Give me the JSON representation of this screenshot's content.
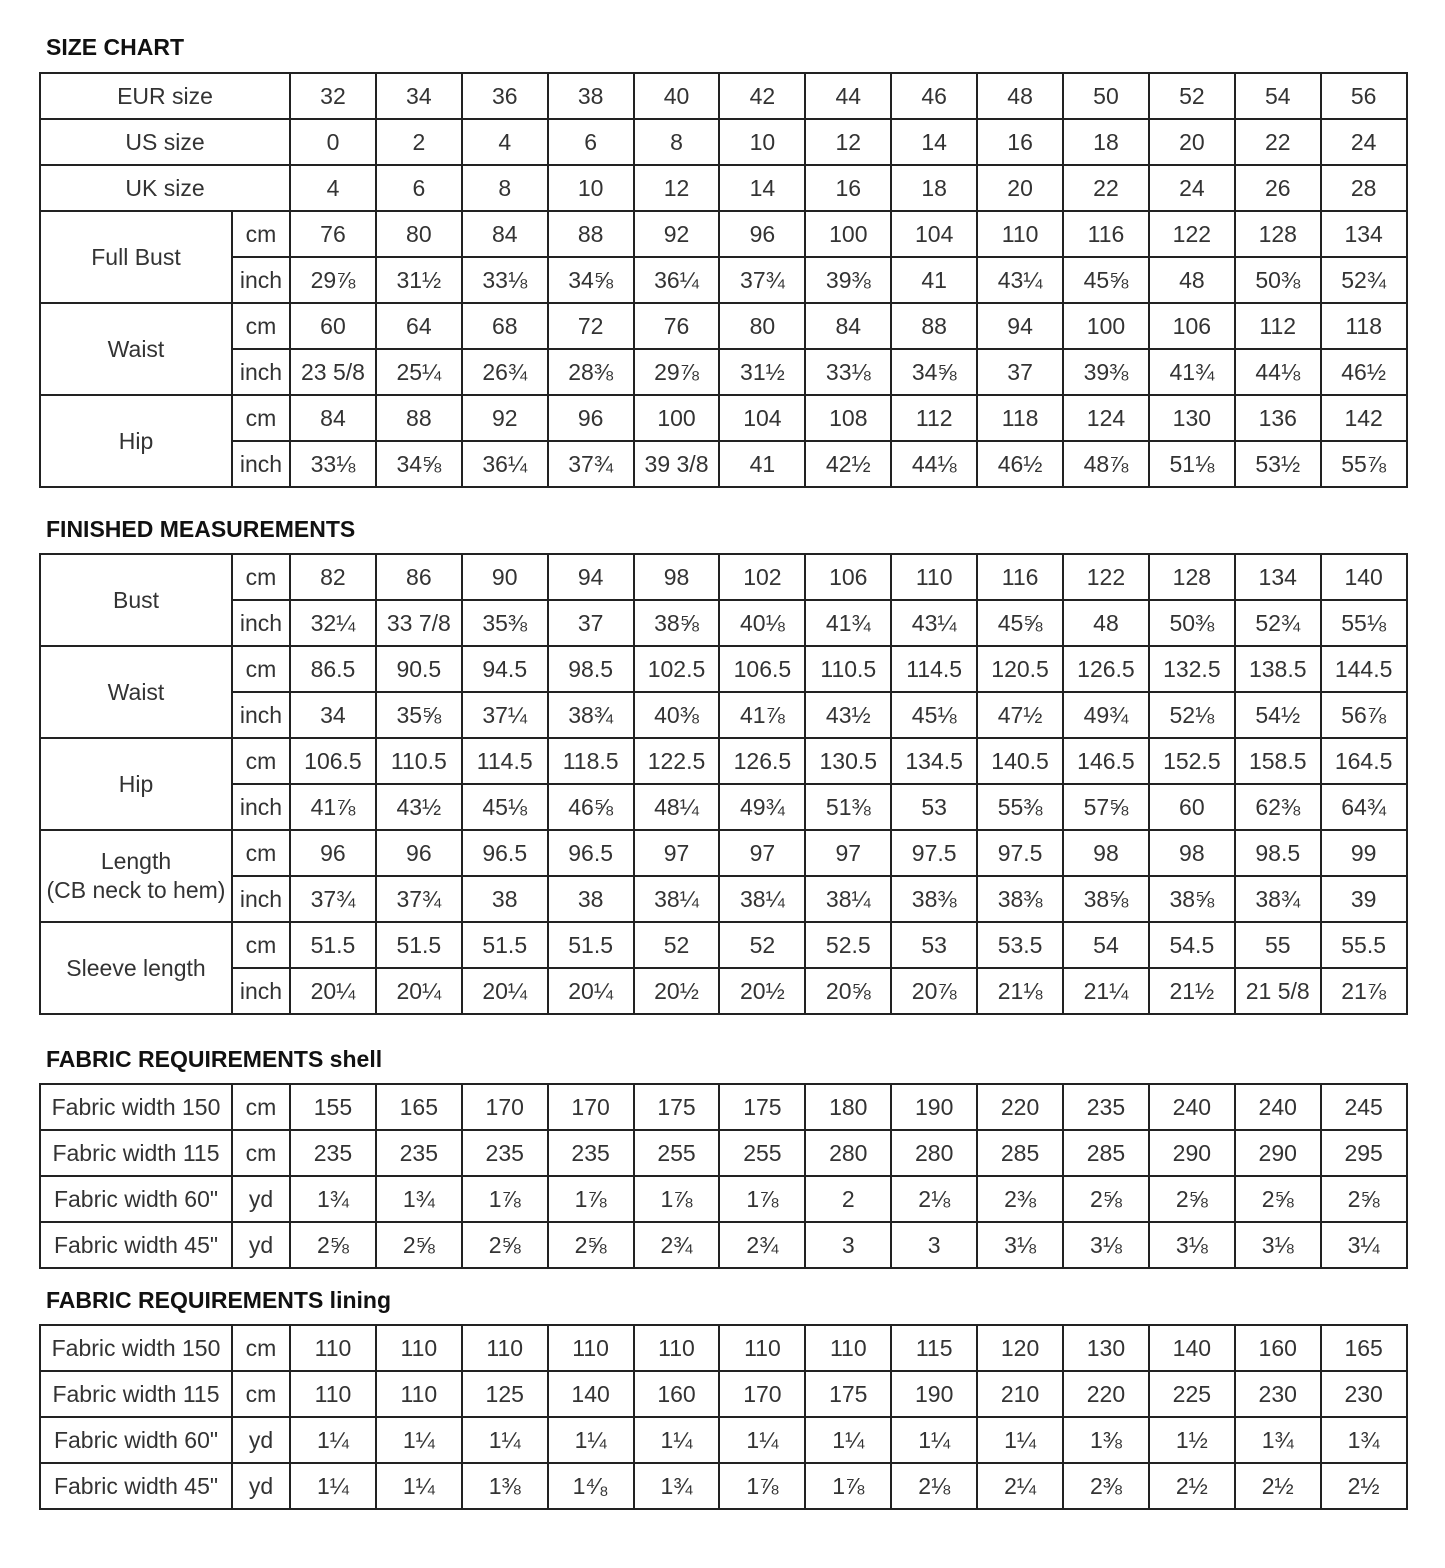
{
  "sections": [
    {
      "title": "SIZE CHART",
      "groups": [
        {
          "label": "EUR size",
          "rows": [
            {
              "unit": "",
              "values": [
                "32",
                "34",
                "36",
                "38",
                "40",
                "42",
                "44",
                "46",
                "48",
                "50",
                "52",
                "54",
                "56"
              ]
            }
          ]
        },
        {
          "label": "US size",
          "rows": [
            {
              "unit": "",
              "values": [
                "0",
                "2",
                "4",
                "6",
                "8",
                "10",
                "12",
                "14",
                "16",
                "18",
                "20",
                "22",
                "24"
              ]
            }
          ]
        },
        {
          "label": "UK size",
          "rows": [
            {
              "unit": "",
              "values": [
                "4",
                "6",
                "8",
                "10",
                "12",
                "14",
                "16",
                "18",
                "20",
                "22",
                "24",
                "26",
                "28"
              ]
            }
          ]
        },
        {
          "label": "Full Bust",
          "rows": [
            {
              "unit": "cm",
              "values": [
                "76",
                "80",
                "84",
                "88",
                "92",
                "96",
                "100",
                "104",
                "110",
                "116",
                "122",
                "128",
                "134"
              ]
            },
            {
              "unit": "inch",
              "values": [
                "29⅞",
                "31½",
                "33⅛",
                "34⅝",
                "36¼",
                "37¾",
                "39⅜",
                "41",
                "43¼",
                "45⅝",
                "48",
                "50⅜",
                "52¾"
              ]
            }
          ]
        },
        {
          "label": "Waist",
          "rows": [
            {
              "unit": "cm",
              "values": [
                "60",
                "64",
                "68",
                "72",
                "76",
                "80",
                "84",
                "88",
                "94",
                "100",
                "106",
                "112",
                "118"
              ]
            },
            {
              "unit": "inch",
              "values": [
                "23 5/8",
                "25¼",
                "26¾",
                "28⅜",
                "29⅞",
                "31½",
                "33⅛",
                "34⅝",
                "37",
                "39⅜",
                "41¾",
                "44⅛",
                "46½"
              ]
            }
          ]
        },
        {
          "label": "Hip",
          "rows": [
            {
              "unit": "cm",
              "values": [
                "84",
                "88",
                "92",
                "96",
                "100",
                "104",
                "108",
                "112",
                "118",
                "124",
                "130",
                "136",
                "142"
              ]
            },
            {
              "unit": "inch",
              "values": [
                "33⅛",
                "34⅝",
                "36¼",
                "37¾",
                "39 3/8",
                "41",
                "42½",
                "44⅛",
                "46½",
                "48⅞",
                "51⅛",
                "53½",
                "55⅞"
              ]
            }
          ]
        }
      ]
    },
    {
      "title": "FINISHED MEASUREMENTS",
      "groups": [
        {
          "label": "Bust",
          "rows": [
            {
              "unit": "cm",
              "values": [
                "82",
                "86",
                "90",
                "94",
                "98",
                "102",
                "106",
                "110",
                "116",
                "122",
                "128",
                "134",
                "140"
              ]
            },
            {
              "unit": "inch",
              "values": [
                "32¼",
                "33 7/8",
                "35⅜",
                "37",
                "38⅝",
                "40⅛",
                "41¾",
                "43¼",
                "45⅝",
                "48",
                "50⅜",
                "52¾",
                "55⅛"
              ]
            }
          ]
        },
        {
          "label": "Waist",
          "rows": [
            {
              "unit": "cm",
              "values": [
                "86.5",
                "90.5",
                "94.5",
                "98.5",
                "102.5",
                "106.5",
                "110.5",
                "114.5",
                "120.5",
                "126.5",
                "132.5",
                "138.5",
                "144.5"
              ]
            },
            {
              "unit": "inch",
              "values": [
                "34",
                "35⅝",
                "37¼",
                "38¾",
                "40⅜",
                "41⅞",
                "43½",
                "45⅛",
                "47½",
                "49¾",
                "52⅛",
                "54½",
                "56⅞"
              ]
            }
          ]
        },
        {
          "label": "Hip",
          "rows": [
            {
              "unit": "cm",
              "values": [
                "106.5",
                "110.5",
                "114.5",
                "118.5",
                "122.5",
                "126.5",
                "130.5",
                "134.5",
                "140.5",
                "146.5",
                "152.5",
                "158.5",
                "164.5"
              ]
            },
            {
              "unit": "inch",
              "values": [
                "41⅞",
                "43½",
                "45⅛",
                "46⅝",
                "48¼",
                "49¾",
                "51⅜",
                "53",
                "55⅜",
                "57⅝",
                "60",
                "62⅜",
                "64¾"
              ]
            }
          ]
        },
        {
          "label": "Length",
          "sublabel": "(CB neck to hem)",
          "rows": [
            {
              "unit": "cm",
              "values": [
                "96",
                "96",
                "96.5",
                "96.5",
                "97",
                "97",
                "97",
                "97.5",
                "97.5",
                "98",
                "98",
                "98.5",
                "99"
              ]
            },
            {
              "unit": "inch",
              "values": [
                "37¾",
                "37¾",
                "38",
                "38",
                "38¼",
                "38¼",
                "38¼",
                "38⅜",
                "38⅜",
                "38⅝",
                "38⅝",
                "38¾",
                "39"
              ]
            }
          ]
        },
        {
          "label": "Sleeve length",
          "rows": [
            {
              "unit": "cm",
              "values": [
                "51.5",
                "51.5",
                "51.5",
                "51.5",
                "52",
                "52",
                "52.5",
                "53",
                "53.5",
                "54",
                "54.5",
                "55",
                "55.5"
              ]
            },
            {
              "unit": "inch",
              "values": [
                "20¼",
                "20¼",
                "20¼",
                "20¼",
                "20½",
                "20½",
                "20⅝",
                "20⅞",
                "21⅛",
                "21¼",
                "21½",
                "21 5/8",
                "21⅞"
              ]
            }
          ]
        }
      ]
    },
    {
      "title": "FABRIC REQUIREMENTS shell",
      "groups": [
        {
          "label": "Fabric width 150",
          "rows": [
            {
              "unit": "cm",
              "values": [
                "155",
                "165",
                "170",
                "170",
                "175",
                "175",
                "180",
                "190",
                "220",
                "235",
                "240",
                "240",
                "245"
              ]
            }
          ]
        },
        {
          "label": "Fabric width 115",
          "rows": [
            {
              "unit": "cm",
              "values": [
                "235",
                "235",
                "235",
                "235",
                "255",
                "255",
                "280",
                "280",
                "285",
                "285",
                "290",
                "290",
                "295"
              ]
            }
          ]
        },
        {
          "label": "Fabric width 60\"",
          "rows": [
            {
              "unit": "yd",
              "values": [
                "1¾",
                "1¾",
                "1⅞",
                "1⅞",
                "1⅞",
                "1⅞",
                "2",
                "2⅛",
                "2⅜",
                "2⅝",
                "2⅝",
                "2⅝",
                "2⅝"
              ]
            }
          ]
        },
        {
          "label": "Fabric width 45\"",
          "rows": [
            {
              "unit": "yd",
              "values": [
                "2⅝",
                "2⅝",
                "2⅝",
                "2⅝",
                "2¾",
                "2¾",
                "3",
                "3",
                "3⅛",
                "3⅛",
                "3⅛",
                "3⅛",
                "3¼"
              ]
            }
          ]
        }
      ]
    },
    {
      "title": "FABRIC REQUIREMENTS lining",
      "groups": [
        {
          "label": "Fabric width 150",
          "rows": [
            {
              "unit": "cm",
              "values": [
                "110",
                "110",
                "110",
                "110",
                "110",
                "110",
                "110",
                "115",
                "120",
                "130",
                "140",
                "160",
                "165"
              ]
            }
          ]
        },
        {
          "label": "Fabric width 115",
          "rows": [
            {
              "unit": "cm",
              "values": [
                "110",
                "110",
                "125",
                "140",
                "160",
                "170",
                "175",
                "190",
                "210",
                "220",
                "225",
                "230",
                "230"
              ]
            }
          ]
        },
        {
          "label": "Fabric width 60\"",
          "rows": [
            {
              "unit": "yd",
              "values": [
                "1¼",
                "1¼",
                "1¼",
                "1¼",
                "1¼",
                "1¼",
                "1¼",
                "1¼",
                "1¼",
                "1⅜",
                "1½",
                "1¾",
                "1¾"
              ]
            }
          ]
        },
        {
          "label": "Fabric width 45\"",
          "rows": [
            {
              "unit": "yd",
              "values": [
                "1¼",
                "1¼",
                "1⅜",
                "1⁴⁄₈",
                "1¾",
                "1⅞",
                "1⅞",
                "2⅛",
                "2¼",
                "2⅜",
                "2½",
                "2½",
                "2½"
              ]
            }
          ]
        }
      ]
    }
  ]
}
